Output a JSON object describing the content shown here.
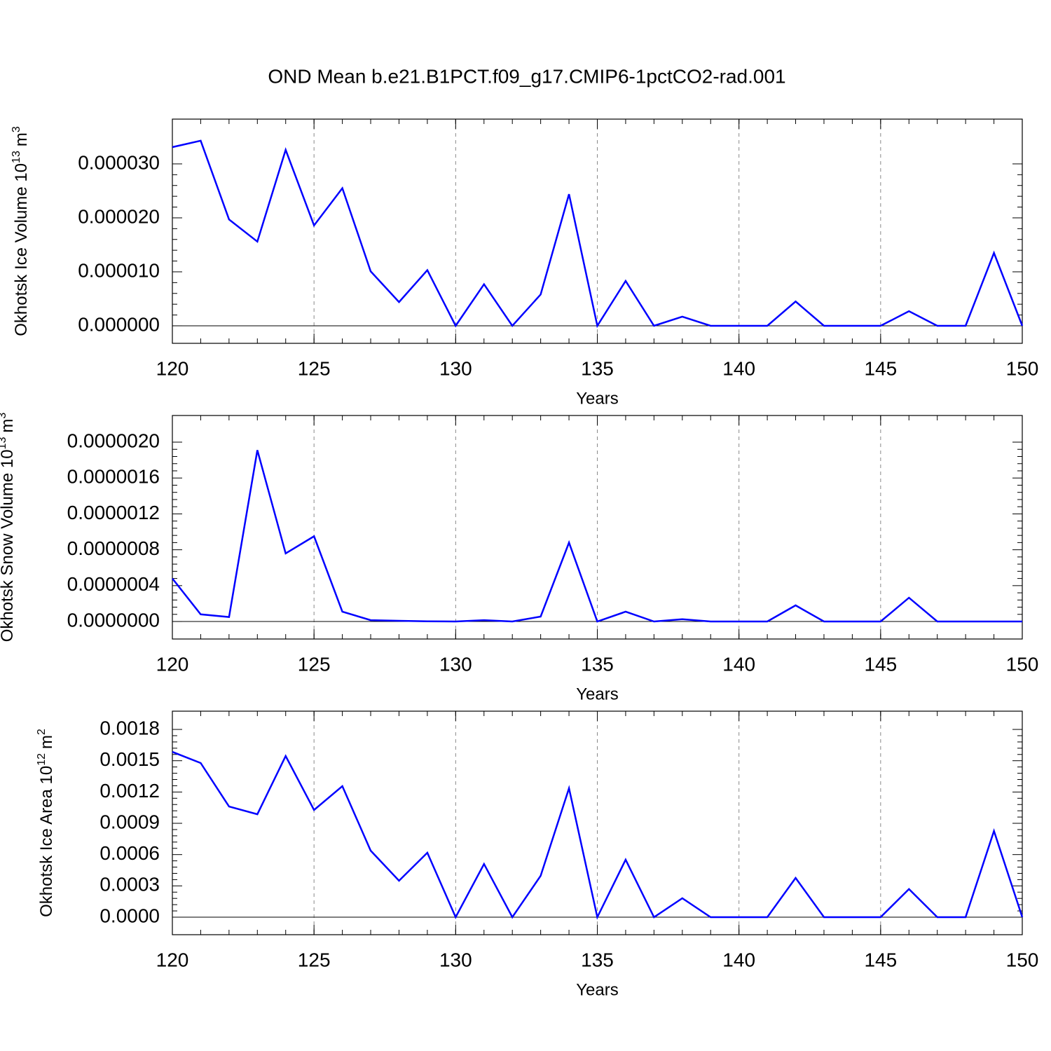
{
  "title": "OND Mean b.e21.B1PCT.f09_g17.CMIP6-1pctCO2-rad.001",
  "chart_data": [
    {
      "type": "line",
      "ylabel": [
        "Okhotsk Ice Volume 10",
        "13",
        "m",
        "3"
      ],
      "xlabel": "Years",
      "x": [
        120,
        121,
        122,
        123,
        124,
        125,
        126,
        127,
        128,
        129,
        130,
        131,
        132,
        133,
        134,
        135,
        136,
        137,
        138,
        139,
        140,
        141,
        142,
        143,
        144,
        145,
        146,
        147,
        148,
        149,
        150
      ],
      "series": [
        {
          "color": "#0000ff",
          "values": [
            3.31e-05,
            3.43e-05,
            1.97e-05,
            1.56e-05,
            3.26e-05,
            1.86e-05,
            2.55e-05,
            1.01e-05,
            4.4e-06,
            1.03e-05,
            0,
            7.7e-06,
            0,
            5.8e-06,
            2.44e-05,
            0,
            8.3e-06,
            0,
            1.7e-06,
            0,
            0,
            0,
            4.5e-06,
            0,
            0,
            0,
            2.7e-06,
            0,
            0,
            1.35e-05,
            0
          ]
        }
      ],
      "xlim": [
        120,
        150
      ],
      "xticks": [
        120,
        125,
        130,
        135,
        140,
        145,
        150
      ],
      "ylim": [
        -3.25e-06,
        3.83e-05
      ],
      "yticks": [
        {
          "value": 0,
          "label": "0.000000"
        },
        {
          "value": 1e-05,
          "label": "0.000010"
        },
        {
          "value": 2e-05,
          "label": "0.000020"
        },
        {
          "value": 3e-05,
          "label": "0.000030"
        }
      ],
      "ref_line": 0,
      "grid": "x-dashed"
    },
    {
      "type": "line",
      "ylabel": [
        "Okhotsk Snow Volume 10",
        "13",
        "m",
        "3"
      ],
      "xlabel": "Years",
      "x": [
        120,
        121,
        122,
        123,
        124,
        125,
        126,
        127,
        128,
        129,
        130,
        131,
        132,
        133,
        134,
        135,
        136,
        137,
        138,
        139,
        140,
        141,
        142,
        143,
        144,
        145,
        146,
        147,
        148,
        149,
        150
      ],
      "series": [
        {
          "color": "#0000ff",
          "values": [
            4.8e-07,
            8e-08,
            5e-08,
            1.91e-06,
            7.6e-07,
            9.5e-07,
            1.1e-07,
            1.5e-08,
            8e-09,
            2e-09,
            0,
            1.5e-08,
            0,
            5.5e-08,
            8.8e-07,
            0,
            1.1e-07,
            0,
            2.5e-08,
            0,
            0,
            0,
            1.8e-07,
            0,
            0,
            0,
            2.65e-07,
            0,
            0,
            0,
            0
          ]
        }
      ],
      "xlim": [
        120,
        150
      ],
      "xticks": [
        120,
        125,
        130,
        135,
        140,
        145,
        150
      ],
      "ylim": [
        -1.95e-07,
        2.297e-06
      ],
      "yticks": [
        {
          "value": 0,
          "label": "0.0000000"
        },
        {
          "value": 4e-07,
          "label": "0.0000004"
        },
        {
          "value": 8e-07,
          "label": "0.0000008"
        },
        {
          "value": 1.2e-06,
          "label": "0.0000012"
        },
        {
          "value": 1.6e-06,
          "label": "0.0000016"
        },
        {
          "value": 2e-06,
          "label": "0.0000020"
        }
      ],
      "ref_line": 0,
      "grid": "x-dashed"
    },
    {
      "type": "line",
      "ylabel": [
        "Okhotsk Ice Area 10",
        "12",
        "m",
        "2"
      ],
      "xlabel": "Years",
      "x": [
        120,
        121,
        122,
        123,
        124,
        125,
        126,
        127,
        128,
        129,
        130,
        131,
        132,
        133,
        134,
        135,
        136,
        137,
        138,
        139,
        140,
        141,
        142,
        143,
        144,
        145,
        146,
        147,
        148,
        149,
        150
      ],
      "series": [
        {
          "color": "#0000ff",
          "values": [
            0.001585,
            0.001478,
            0.001061,
            0.000987,
            0.001545,
            0.001028,
            0.001256,
            0.000638,
            0.000349,
            0.000618,
            0,
            0.00051,
            0,
            0.000396,
            0.001236,
            0,
            0.000551,
            0,
            0.000181,
            0,
            0,
            0,
            0.000376,
            0,
            0,
            0,
            0.000269,
            0,
            0,
            0.000826,
            0
          ]
        }
      ],
      "xlim": [
        120,
        150
      ],
      "xticks": [
        120,
        125,
        130,
        135,
        140,
        145,
        150
      ],
      "ylim": [
        -0.000168,
        0.001975
      ],
      "yticks": [
        {
          "value": 0,
          "label": "0.0000"
        },
        {
          "value": 0.0003,
          "label": "0.0003"
        },
        {
          "value": 0.0006,
          "label": "0.0006"
        },
        {
          "value": 0.0009,
          "label": "0.0009"
        },
        {
          "value": 0.0012,
          "label": "0.0012"
        },
        {
          "value": 0.0015,
          "label": "0.0015"
        },
        {
          "value": 0.0018,
          "label": "0.0018"
        }
      ],
      "ref_line": 0,
      "grid": "x-dashed"
    }
  ]
}
